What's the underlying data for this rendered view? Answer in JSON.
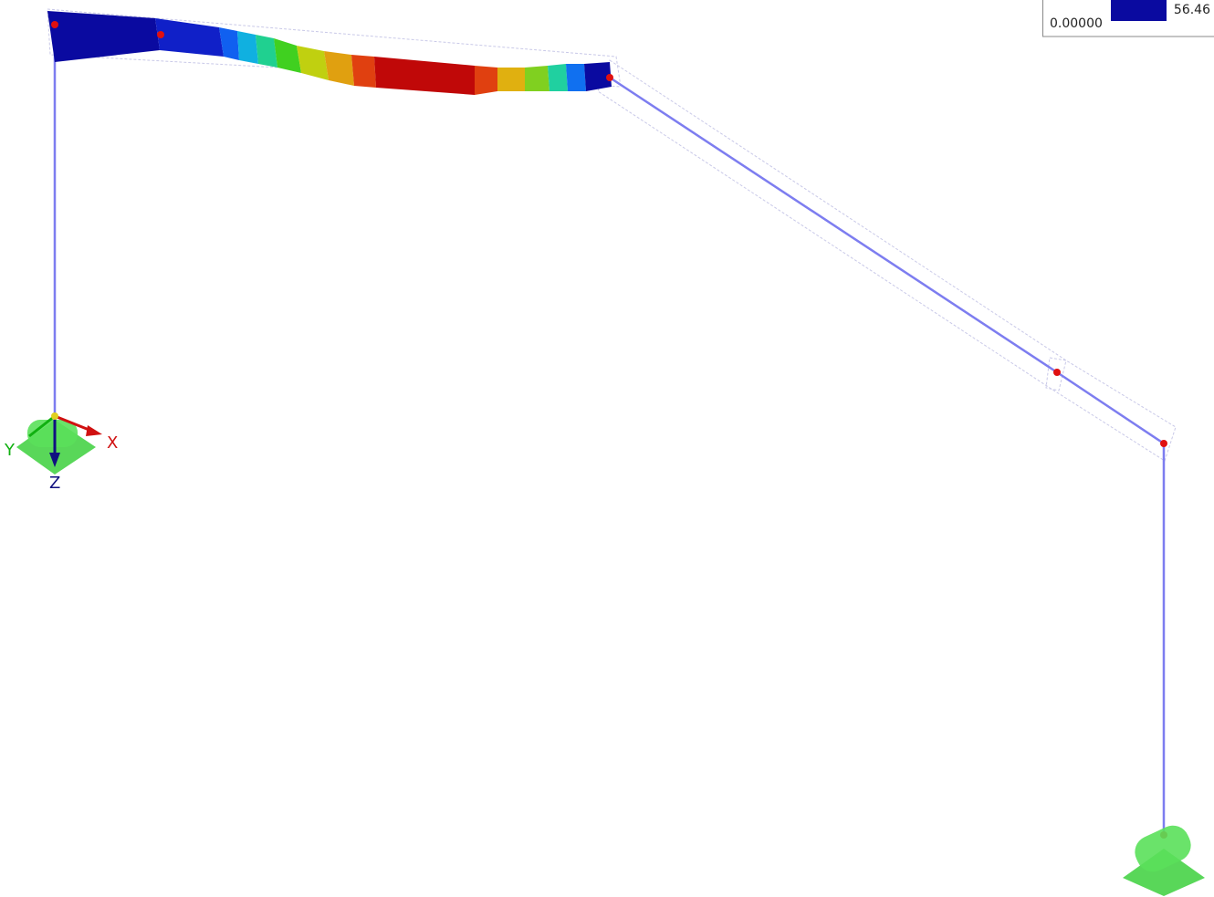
{
  "legend": {
    "max_label": "56.46",
    "min_label": "0.00000"
  },
  "axes": {
    "x": "X",
    "y": "Y",
    "z": "Z"
  }
}
